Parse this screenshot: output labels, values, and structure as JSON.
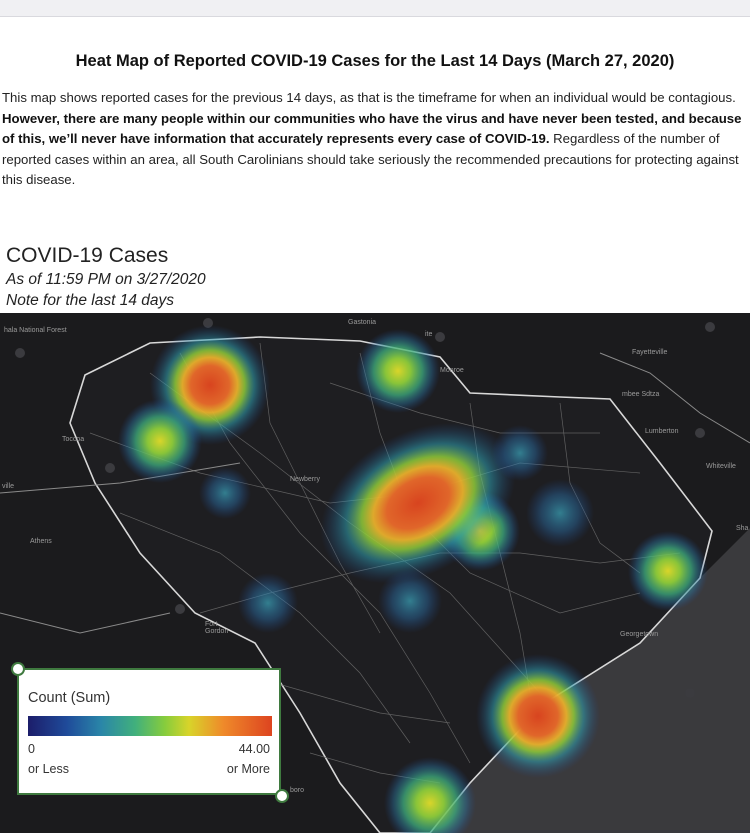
{
  "document": {
    "title": "Heat Map of Reported COVID-19 Cases for the Last 14 Days (March 27, 2020)",
    "paragraph_start": "This map shows reported cases for the previous 14 days, as that is the timeframe for when an individual would be contagious. ",
    "paragraph_bold": "However, there are many people within our communities who have the virus and have never been tested, and because of this, we’ll never have information that accurately represents every case of COVID-19.",
    "paragraph_end": " Regardless of the number of reported cases within an area, all South Carolinians should take seriously the recommended precautions for protecting against this disease."
  },
  "map": {
    "title": "COVID-19 Cases",
    "subtitle_1": "As of 11:59 PM on 3/27/2020",
    "subtitle_2": "Note for the last 14 days",
    "place_labels": [
      "hala National Forest",
      "Gastonia",
      "ite",
      "Monroe",
      "Fayetteville",
      "mbee Sdtza",
      "Lumberton",
      "Whiteville",
      "Toccoa",
      "Athens",
      "Newberry",
      "Fort Gordon",
      "Georgetown",
      "Sha",
      "boro",
      "ville"
    ],
    "heat_colors": {
      "low": "#1f4b9a",
      "mid": "#86cc3d",
      "high": "#dd4420"
    }
  },
  "legend": {
    "title": "Count (Sum)",
    "min_value": "0",
    "min_label": "or Less",
    "max_value": "44.00",
    "max_label": "or More"
  }
}
